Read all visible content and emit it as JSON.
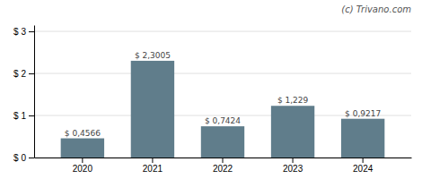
{
  "chart_data": {
    "type": "bar",
    "categories": [
      "2020",
      "2021",
      "2022",
      "2023",
      "2024"
    ],
    "values": [
      0.4566,
      2.3005,
      0.7424,
      1.229,
      0.9217
    ],
    "value_labels": [
      "$ 0,4566",
      "$ 2,3005",
      "$ 0,7424",
      "$ 1,229",
      "$ 0,9217"
    ],
    "data_labels": true,
    "color": "#607d8b",
    "ylim": [
      0,
      3.15
    ],
    "yticks": [
      {
        "value": 0,
        "label": "$ 0"
      },
      {
        "value": 1,
        "label": "$ 1"
      },
      {
        "value": 2,
        "label": "$ 2"
      },
      {
        "value": 3,
        "label": "$ 3"
      }
    ],
    "grid": true,
    "annotations": [
      "(c) Trivano.com"
    ]
  }
}
